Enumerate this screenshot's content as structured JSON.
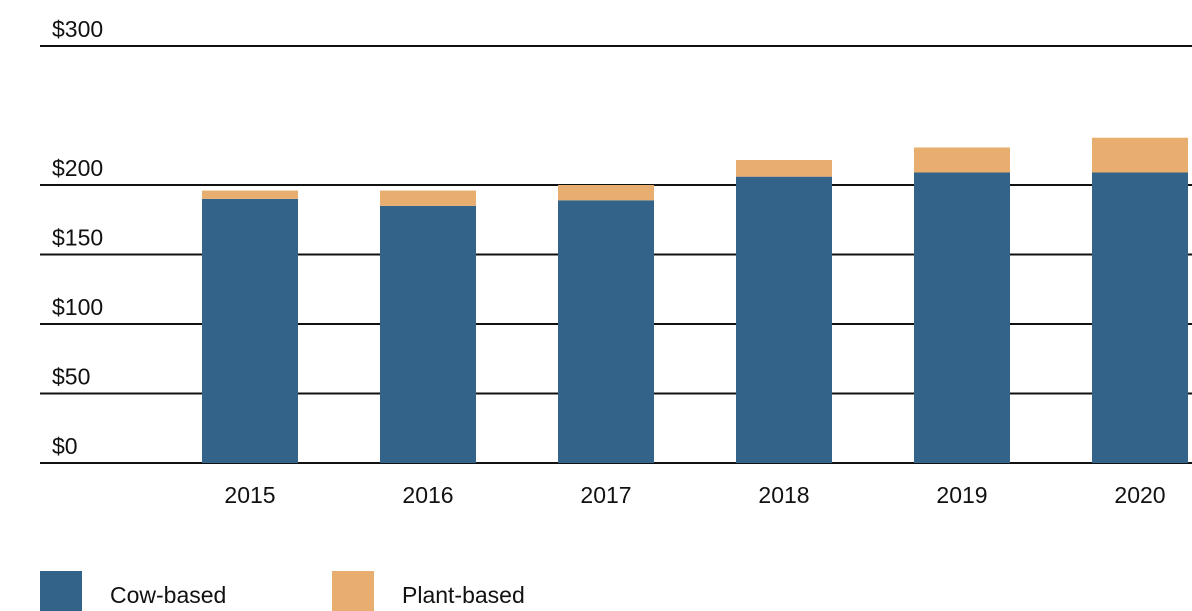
{
  "chart_data": {
    "type": "stacked_bar",
    "categories": [
      "2015",
      "2016",
      "2017",
      "2018",
      "2019",
      "2020"
    ],
    "series": [
      {
        "name": "Cow-based",
        "color": "#336388",
        "values": [
          190,
          185,
          189,
          206,
          209,
          209
        ]
      },
      {
        "name": "Plant-based",
        "color": "#e8ae6f",
        "values": [
          6,
          11,
          11,
          12,
          18,
          25
        ]
      }
    ],
    "ylim": [
      0,
      300
    ],
    "yticks": [
      {
        "value": 0,
        "label": "$0"
      },
      {
        "value": 50,
        "label": "$50"
      },
      {
        "value": 100,
        "label": "$100"
      },
      {
        "value": 150,
        "label": "$150"
      },
      {
        "value": 200,
        "label": "$200"
      },
      {
        "value": 300,
        "label": "$300"
      }
    ],
    "grid": true,
    "legend": "bottom"
  }
}
